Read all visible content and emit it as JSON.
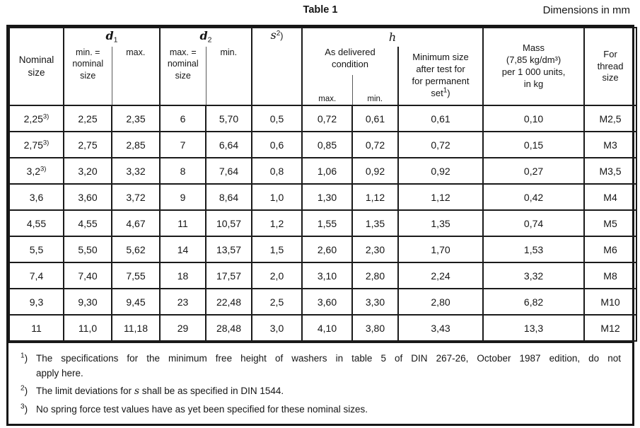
{
  "title": "Table 1",
  "units_note": "Dimensions in mm",
  "header": {
    "nominal_size": "Nominal\nsize",
    "d1_symbol": "d",
    "d1_sub": "1",
    "d1_min_label": "min. =\nnominal\nsize",
    "d1_max_label": "max.",
    "d2_symbol": "d",
    "d2_sub": "2",
    "d2_max_label": "max. =\nnominal\nsize",
    "d2_min_label": "min.",
    "s_symbol": "s",
    "s_sup": "2",
    "s_paren": ")",
    "h_symbol": "h",
    "as_delivered_label": "As delivered\ncondition",
    "h_max_label": "max.",
    "h_min_label": "min.",
    "perm_set_label": "Minimum size\nafter test for\nfor permanent\nset",
    "perm_set_sup": "1",
    "perm_set_paren": ")",
    "mass_label": "Mass\n(7,85 kg/dm³)\nper 1 000 units,\nin kg",
    "thread_label": "For\nthread\nsize"
  },
  "rows": [
    {
      "nominal": "2,25",
      "nominal_sup": "3)",
      "d1_min": "2,25",
      "d1_max": "2,35",
      "d2_max": "6",
      "d2_min": "5,70",
      "s": "0,5",
      "h_max": "0,72",
      "h_min": "0,61",
      "perm_set": "0,61",
      "mass": "0,10",
      "thread": "M2,5"
    },
    {
      "nominal": "2,75",
      "nominal_sup": "3)",
      "d1_min": "2,75",
      "d1_max": "2,85",
      "d2_max": "7",
      "d2_min": "6,64",
      "s": "0,6",
      "h_max": "0,85",
      "h_min": "0,72",
      "perm_set": "0,72",
      "mass": "0,15",
      "thread": "M3"
    },
    {
      "nominal": "3,2",
      "nominal_sup": "3)",
      "d1_min": "3,20",
      "d1_max": "3,32",
      "d2_max": "8",
      "d2_min": "7,64",
      "s": "0,8",
      "h_max": "1,06",
      "h_min": "0,92",
      "perm_set": "0,92",
      "mass": "0,27",
      "thread": "M3,5"
    },
    {
      "nominal": "3,6",
      "nominal_sup": "",
      "d1_min": "3,60",
      "d1_max": "3,72",
      "d2_max": "9",
      "d2_min": "8,64",
      "s": "1,0",
      "h_max": "1,30",
      "h_min": "1,12",
      "perm_set": "1,12",
      "mass": "0,42",
      "thread": "M4"
    },
    {
      "nominal": "4,55",
      "nominal_sup": "",
      "d1_min": "4,55",
      "d1_max": "4,67",
      "d2_max": "11",
      "d2_min": "10,57",
      "s": "1,2",
      "h_max": "1,55",
      "h_min": "1,35",
      "perm_set": "1,35",
      "mass": "0,74",
      "thread": "M5"
    },
    {
      "nominal": "5,5",
      "nominal_sup": "",
      "d1_min": "5,50",
      "d1_max": "5,62",
      "d2_max": "14",
      "d2_min": "13,57",
      "s": "1,5",
      "h_max": "2,60",
      "h_min": "2,30",
      "perm_set": "1,70",
      "mass": "1,53",
      "thread": "M6"
    },
    {
      "nominal": "7,4",
      "nominal_sup": "",
      "d1_min": "7,40",
      "d1_max": "7,55",
      "d2_max": "18",
      "d2_min": "17,57",
      "s": "2,0",
      "h_max": "3,10",
      "h_min": "2,80",
      "perm_set": "2,24",
      "mass": "3,32",
      "thread": "M8"
    },
    {
      "nominal": "9,3",
      "nominal_sup": "",
      "d1_min": "9,30",
      "d1_max": "9,45",
      "d2_max": "23",
      "d2_min": "22,48",
      "s": "2,5",
      "h_max": "3,60",
      "h_min": "3,30",
      "perm_set": "2,80",
      "mass": "6,82",
      "thread": "M10"
    },
    {
      "nominal": "11",
      "nominal_sup": "",
      "d1_min": "11,0",
      "d1_max": "11,18",
      "d2_max": "29",
      "d2_min": "28,48",
      "s": "3,0",
      "h_max": "4,10",
      "h_min": "3,80",
      "perm_set": "3,43",
      "mass": "13,3",
      "thread": "M12"
    }
  ],
  "footnotes": {
    "fn1_marker": "1",
    "fn1_paren": ")",
    "fn1_line1": "The specifications for the minimum free height of washers in table 5 of DIN 267-26, October 1987 edition, do not",
    "fn1_line2": "apply here.",
    "fn2_marker": "2",
    "fn2_paren": ")",
    "fn2_text_before": "The limit deviations for ",
    "fn2_symbol": "s",
    "fn2_text_after": " shall be as specified in DIN 1544.",
    "fn3_marker": "3",
    "fn3_paren": ")",
    "fn3_text": "No spring force test values have as yet been specified for these nominal sizes."
  }
}
